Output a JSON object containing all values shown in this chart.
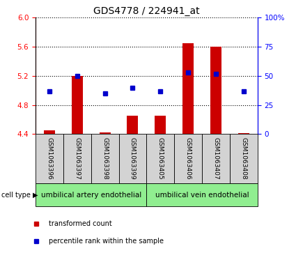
{
  "title": "GDS4778 / 224941_at",
  "samples": [
    "GSM1063396",
    "GSM1063397",
    "GSM1063398",
    "GSM1063399",
    "GSM1063405",
    "GSM1063406",
    "GSM1063407",
    "GSM1063408"
  ],
  "red_values": [
    4.45,
    5.2,
    4.42,
    4.65,
    4.65,
    5.65,
    5.6,
    4.41
  ],
  "blue_values": [
    37,
    50,
    35,
    40,
    37,
    53,
    52,
    37
  ],
  "bar_bottom": 4.4,
  "ylim_left": [
    4.4,
    6.0
  ],
  "ylim_right": [
    0,
    100
  ],
  "yticks_left": [
    4.4,
    4.8,
    5.2,
    5.6,
    6.0
  ],
  "yticks_right": [
    0,
    25,
    50,
    75,
    100
  ],
  "ytick_right_labels": [
    "0",
    "25",
    "50",
    "75",
    "100%"
  ],
  "group1_label": "umbilical artery endothelial",
  "group2_label": "umbilical vein endothelial",
  "group1_indices": [
    0,
    1,
    2,
    3
  ],
  "group2_indices": [
    4,
    5,
    6,
    7
  ],
  "cell_type_label": "cell type",
  "legend_red": "transformed count",
  "legend_blue": "percentile rank within the sample",
  "bar_color": "#cc0000",
  "blue_color": "#0000cc",
  "group_color": "#90ee90",
  "sample_box_color": "#d3d3d3",
  "title_fontsize": 10,
  "tick_fontsize": 7.5,
  "sample_fontsize": 6.5,
  "group_fontsize": 7.5,
  "legend_fontsize": 7,
  "bar_width": 0.4,
  "blue_markersize": 5
}
